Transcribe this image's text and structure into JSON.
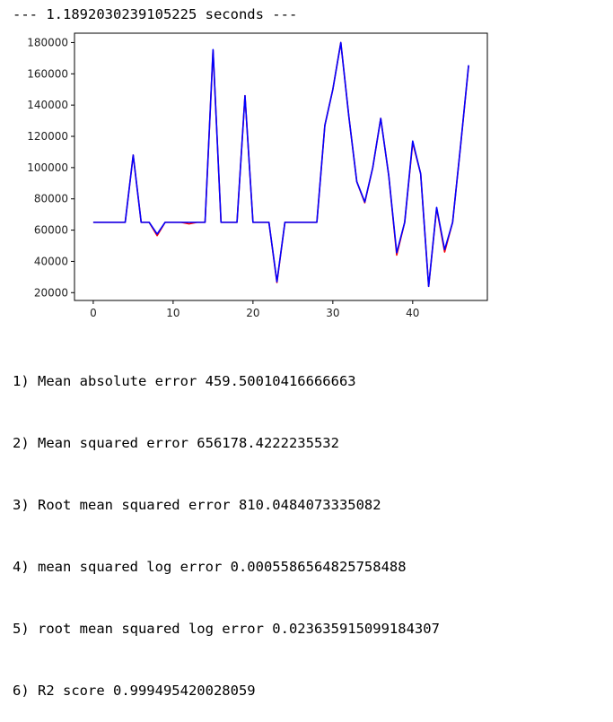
{
  "output": {
    "timing_line": "--- 1.1892030239105225 seconds ---",
    "metrics": [
      "1) Mean absolute error 459.50010416666663",
      "2) Mean squared error 656178.4222235532",
      "3) Root mean squared error 810.0484073335082",
      "4) mean squared log error 0.0005586564825758488",
      "5) root mean squared log error 0.023635915099184307",
      "6) R2 score 0.999495420028059"
    ]
  },
  "chart_data": {
    "type": "line",
    "xlim": [
      -2.35,
      49.35
    ],
    "ylim": [
      15000,
      186000
    ],
    "xticks": [
      0,
      10,
      20,
      30,
      40
    ],
    "yticks": [
      20000,
      40000,
      60000,
      80000,
      100000,
      120000,
      140000,
      160000,
      180000
    ],
    "xtick_labels": [
      "0",
      "10",
      "20",
      "30",
      "40"
    ],
    "ytick_labels": [
      "20000",
      "40000",
      "60000",
      "80000",
      "100000",
      "120000",
      "140000",
      "160000",
      "180000"
    ],
    "grid": false,
    "legend": false,
    "x": [
      0,
      1,
      2,
      3,
      4,
      5,
      6,
      7,
      8,
      9,
      10,
      11,
      12,
      13,
      14,
      15,
      16,
      17,
      18,
      19,
      20,
      21,
      22,
      23,
      24,
      25,
      26,
      27,
      28,
      29,
      30,
      31,
      32,
      33,
      34,
      35,
      36,
      37,
      38,
      39,
      40,
      41,
      42,
      43,
      44,
      45,
      46,
      47
    ],
    "series": [
      {
        "color": "#ff0000",
        "values": [
          65000,
          65000,
          65000,
          65000,
          65000,
          108000,
          65000,
          65000,
          56500,
          65000,
          65000,
          65000,
          64000,
          65000,
          65000,
          175000,
          65000,
          65000,
          65000,
          146000,
          65000,
          65000,
          65000,
          26500,
          65000,
          65000,
          65000,
          65000,
          65000,
          127000,
          150000,
          180000,
          133000,
          91000,
          77500,
          100000,
          131500,
          95000,
          44000,
          65000,
          116000,
          96000,
          24000,
          74000,
          46000,
          65000,
          114000,
          165000
        ]
      },
      {
        "color": "#0000ff",
        "values": [
          65000,
          65000,
          65000,
          65000,
          65000,
          108000,
          65000,
          65000,
          57500,
          65000,
          65000,
          65000,
          65000,
          65000,
          65000,
          175500,
          65000,
          65000,
          65000,
          146000,
          65000,
          65000,
          65000,
          27000,
          65000,
          65000,
          65000,
          65000,
          65000,
          127000,
          150000,
          180000,
          133000,
          91000,
          78000,
          100000,
          131500,
          95000,
          45500,
          65000,
          117000,
          96000,
          24000,
          74500,
          47500,
          65000,
          114000,
          165500
        ]
      }
    ]
  }
}
